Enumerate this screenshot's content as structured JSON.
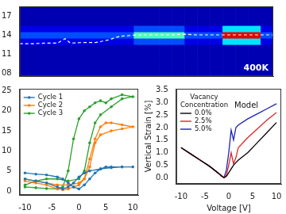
{
  "chart_data": [
    {
      "type": "heatmap",
      "x": [
        2.5,
        7.5,
        12.5,
        17.5,
        22.5,
        27.5,
        32.5,
        37.5,
        42.5,
        47.5,
        52.5,
        57.5,
        62.5,
        67.5,
        72.5,
        77.5,
        82.5,
        87.5,
        92.5,
        97.5
      ],
      "y": [
        8,
        9,
        10,
        11,
        12,
        13,
        14,
        15,
        16,
        17,
        18
      ],
      "z": [
        [
          0.05,
          0.05,
          0.05,
          0.05,
          0.05,
          0.05,
          0.05,
          0.05,
          0.05,
          0.05,
          0.05,
          0.05,
          0.05,
          0.05,
          0.05,
          0.05,
          0.05,
          0.05,
          0.05,
          0.05
        ],
        [
          0.05,
          0.05,
          0.05,
          0.05,
          0.05,
          0.05,
          0.05,
          0.05,
          0.05,
          0.05,
          0.05,
          0.05,
          0.05,
          0.05,
          0.05,
          0.05,
          0.05,
          0.05,
          0.05,
          0.05
        ],
        [
          0.05,
          0.05,
          0.05,
          0.05,
          0.05,
          0.05,
          0.05,
          0.05,
          0.05,
          0.05,
          0.05,
          0.05,
          0.05,
          0.05,
          0.05,
          0.05,
          0.05,
          0.05,
          0.05,
          0.05
        ],
        [
          0.05,
          0.05,
          0.05,
          0.05,
          0.05,
          0.05,
          0.05,
          0.05,
          0.05,
          0.05,
          0.05,
          0.05,
          0.05,
          0.05,
          0.05,
          0.05,
          0.05,
          0.05,
          0.05,
          0.05
        ],
        [
          0.05,
          0.05,
          0.05,
          0.05,
          0.05,
          0.05,
          0.05,
          0.05,
          0.05,
          0.05,
          0.05,
          0.05,
          0.05,
          0.05,
          0.05,
          0.05,
          0.05,
          0.05,
          0.05,
          0.05
        ],
        [
          0.1,
          0.1,
          0.1,
          0.1,
          0.1,
          0.1,
          0.1,
          0.1,
          0.1,
          0.2,
          0.2,
          0.2,
          0.2,
          0.1,
          0.1,
          0.1,
          0.35,
          0.35,
          0.35,
          0.1
        ],
        [
          0.2,
          0.2,
          0.2,
          0.2,
          0.2,
          0.2,
          0.2,
          0.2,
          0.2,
          0.45,
          0.45,
          0.45,
          0.45,
          0.2,
          0.2,
          0.2,
          0.9,
          0.9,
          0.9,
          0.2
        ],
        [
          0.1,
          0.1,
          0.1,
          0.1,
          0.1,
          0.1,
          0.1,
          0.1,
          0.1,
          0.2,
          0.2,
          0.2,
          0.2,
          0.1,
          0.1,
          0.1,
          0.35,
          0.35,
          0.35,
          0.1
        ],
        [
          0.05,
          0.05,
          0.05,
          0.05,
          0.05,
          0.05,
          0.05,
          0.05,
          0.05,
          0.05,
          0.05,
          0.05,
          0.05,
          0.05,
          0.05,
          0.05,
          0.05,
          0.05,
          0.05,
          0.05
        ],
        [
          0.05,
          0.05,
          0.05,
          0.05,
          0.05,
          0.05,
          0.05,
          0.05,
          0.05,
          0.05,
          0.05,
          0.05,
          0.05,
          0.05,
          0.05,
          0.05,
          0.05,
          0.05,
          0.05,
          0.05
        ],
        [
          0.05,
          0.05,
          0.05,
          0.05,
          0.05,
          0.05,
          0.05,
          0.05,
          0.05,
          0.05,
          0.05,
          0.05,
          0.05,
          0.05,
          0.05,
          0.05,
          0.05,
          0.05,
          0.05,
          0.05
        ]
      ],
      "zlim": [
        0,
        1
      ],
      "xlim": [
        0,
        100
      ],
      "ylim": [
        7.5,
        18.5
      ],
      "yticks": [
        17,
        14,
        11,
        {
          "value": 8,
          "label": "08"
        }
      ],
      "tick_labels": "y",
      "grid": false,
      "annotations": [
        "400K"
      ],
      "series": [
        {
          "type": "line",
          "color": "#ffffff",
          "line_style": "dashed",
          "x": [
            0,
            5,
            10,
            15,
            18,
            20,
            25,
            30,
            35,
            38,
            40,
            45,
            50,
            55,
            60,
            65,
            70,
            75,
            80,
            85,
            90,
            95,
            100
          ],
          "values": [
            12.6,
            12.6,
            12.7,
            12.7,
            13.4,
            12.7,
            12.8,
            12.8,
            13.2,
            13.6,
            13.8,
            13.95,
            14,
            14,
            14,
            14.1,
            14,
            14,
            14,
            14,
            14,
            14,
            14
          ]
        }
      ]
    },
    {
      "type": "line",
      "xlim": [
        -11,
        11
      ],
      "xticks": [
        -10,
        -5,
        0,
        5,
        10
      ],
      "ylim": [
        -1,
        25.5
      ],
      "yticks": [
        0,
        5,
        10,
        15,
        20,
        25
      ],
      "grid": false,
      "legend": "upper left",
      "series": [
        {
          "name": "Cycle 1",
          "color": "#1f77b4",
          "marker": "circle",
          "x": [
            -10,
            -8,
            -6,
            -4,
            -3,
            -2,
            -1,
            0,
            1,
            2,
            3,
            4,
            5,
            6,
            8,
            10,
            8,
            6,
            4,
            2,
            1,
            0,
            -1,
            -2,
            -3,
            -4,
            -6,
            -8,
            -10
          ],
          "values": [
            4.5,
            4.2,
            4,
            3.5,
            3,
            2,
            1,
            0.5,
            1.5,
            3,
            4.5,
            5.5,
            6,
            6,
            6,
            6,
            6,
            5.8,
            5.5,
            5,
            4.5,
            3.5,
            2,
            1,
            0.5,
            1,
            2,
            2.5,
            3
          ]
        },
        {
          "name": "Cycle 2",
          "color": "#ff7f0e",
          "marker": "circle",
          "x": [
            -10,
            -8,
            -6,
            -4,
            -3,
            -2,
            -1,
            0,
            1,
            2,
            3,
            4,
            5,
            6,
            8,
            10,
            8,
            6,
            4,
            3,
            2,
            1,
            0,
            -2,
            -4,
            -6,
            -8,
            -10
          ],
          "values": [
            2.5,
            2,
            1.5,
            0.5,
            0.3,
            0.5,
            1,
            1.5,
            3,
            8,
            13,
            16,
            17,
            17,
            16.5,
            16,
            15.5,
            15,
            14,
            12,
            6,
            3,
            2,
            1.5,
            1.5,
            2,
            2.5,
            3
          ]
        },
        {
          "name": "Cycle 3",
          "color": "#2ca02c",
          "marker": "circle",
          "x": [
            -10,
            -8,
            -6,
            -4,
            -3,
            -2,
            -1,
            0,
            1,
            2,
            3,
            4,
            5,
            6,
            8,
            10,
            8,
            6,
            4,
            3,
            2,
            1,
            0,
            -2,
            -4,
            -6,
            -8,
            -10
          ],
          "values": [
            1,
            0.8,
            0.6,
            0.5,
            1,
            5,
            13,
            18,
            20,
            21,
            22,
            22.5,
            22,
            23,
            24,
            23.5,
            23,
            21,
            19,
            17,
            12,
            5,
            3,
            2.5,
            3,
            3,
            2.5,
            1.5
          ]
        }
      ]
    },
    {
      "type": "line",
      "xlabel": "Voltage [V]",
      "ylabel": "Vertical Strain [%]",
      "xlim": [
        -11,
        11
      ],
      "xticks": [
        -10,
        -5,
        0,
        5,
        10
      ],
      "ylim": [
        -0.25,
        3.55
      ],
      "yticks": [
        {
          "value": 0,
          "label": "0.0"
        },
        {
          "value": 0.5,
          "label": "0.5"
        },
        {
          "value": 1,
          "label": "1.0"
        },
        {
          "value": 1.5,
          "label": "1.5"
        },
        {
          "value": 2,
          "label": "2.0"
        },
        {
          "value": 2.5,
          "label": "2.5"
        },
        {
          "value": 3,
          "label": "3.0"
        },
        {
          "value": 3.5,
          "label": "3.5"
        }
      ],
      "grid": false,
      "legend": "upper left",
      "legend_title": "Vacancy Concentration",
      "annotations": [
        "Model"
      ],
      "series": [
        {
          "name": "0.0%",
          "color": "#000000",
          "x": [
            -10,
            -8,
            -6,
            -4,
            -3,
            -2,
            -1.5,
            -1,
            -0.5,
            0,
            0.5,
            1,
            1.5,
            2,
            3,
            4,
            6,
            8,
            10
          ],
          "values": [
            1.2,
            0.95,
            0.7,
            0.45,
            0.3,
            0.15,
            0.05,
            0,
            0.05,
            0.2,
            0.35,
            0.5,
            0.6,
            0.7,
            0.85,
            1.0,
            1.4,
            1.8,
            2.2
          ]
        },
        {
          "name": "2.5%",
          "color": "#d62728",
          "x": [
            -10,
            -8,
            -6,
            -4,
            -2,
            -1,
            -0.5,
            0,
            0.5,
            1,
            1.5,
            2,
            4,
            6,
            8,
            10
          ],
          "values": [
            1.2,
            0.95,
            0.7,
            0.45,
            0.15,
            0,
            0.1,
            0.5,
            1.0,
            0.55,
            0.8,
            1.2,
            1.6,
            1.95,
            2.3,
            2.6
          ]
        },
        {
          "name": "5.0%",
          "color": "#1f1fb4",
          "x": [
            -10,
            -8,
            -6,
            -4,
            -2,
            -1,
            -0.5,
            0,
            0.5,
            1,
            1.5,
            2,
            4,
            6,
            8,
            10
          ],
          "values": [
            1.2,
            0.95,
            0.7,
            0.45,
            0.15,
            0,
            0.3,
            1.0,
            1.9,
            1.5,
            2.0,
            2.1,
            2.35,
            2.55,
            2.75,
            2.95
          ]
        }
      ]
    }
  ]
}
